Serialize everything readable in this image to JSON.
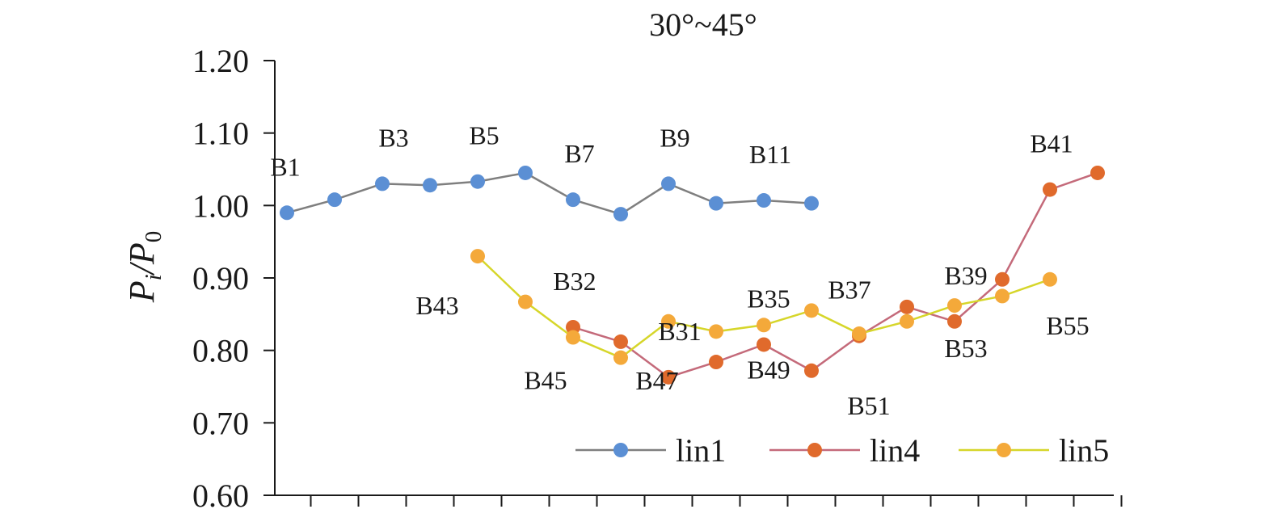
{
  "chart_data": {
    "type": "line",
    "title": "30°~45°",
    "ylabel_main": "P",
    "ylabel_sub_i": "i",
    "ylabel_slash": "/P",
    "ylabel_sub_0": "0",
    "ylim": [
      0.6,
      1.2
    ],
    "yticks": [
      "0.60",
      "0.70",
      "0.80",
      "0.90",
      "1.00",
      "1.10",
      "1.20"
    ],
    "x_positions": 18,
    "grid": false,
    "legend_position": "bottom-right",
    "series": [
      {
        "name": "lin1",
        "line_color": "#7f7f7f",
        "marker_color": "#5b8fd4",
        "x": [
          1,
          2,
          3,
          4,
          5,
          6,
          7,
          8,
          9,
          10,
          11,
          12
        ],
        "values": [
          0.99,
          1.008,
          1.03,
          1.028,
          1.033,
          1.045,
          1.008,
          0.988,
          1.03,
          1.003,
          1.007,
          1.003
        ],
        "labels": {
          "1": "B1",
          "3": "B3",
          "5": "B5",
          "7": "B7",
          "9": "B9",
          "11": "B11"
        }
      },
      {
        "name": "lin4",
        "line_color": "#c46a7a",
        "marker_color": "#e06a2c",
        "x": [
          7,
          8,
          9,
          10,
          11,
          12,
          13,
          14,
          15,
          16,
          17,
          18
        ],
        "values": [
          0.832,
          0.812,
          0.763,
          0.784,
          0.808,
          0.772,
          0.82,
          0.86,
          0.84,
          0.898,
          1.022,
          1.045
        ],
        "labels": {
          "7": "B32",
          "9": "B31",
          "11": "B35",
          "13": "B37",
          "15": "B39",
          "17": "B41"
        }
      },
      {
        "name": "lin5",
        "line_color": "#d6d62a",
        "marker_color": "#f4a93a",
        "x": [
          5,
          6,
          7,
          8,
          9,
          10,
          11,
          12,
          13,
          14,
          15,
          16,
          17
        ],
        "values": [
          0.93,
          0.867,
          0.818,
          0.79,
          0.84,
          0.826,
          0.835,
          0.855,
          0.823,
          0.84,
          0.862,
          0.875,
          0.898
        ],
        "labels": {
          "5": "B43",
          "7": "B45",
          "9": "B47",
          "11": "B49",
          "13": "B51",
          "15": "B53",
          "17": "B55"
        }
      }
    ]
  }
}
